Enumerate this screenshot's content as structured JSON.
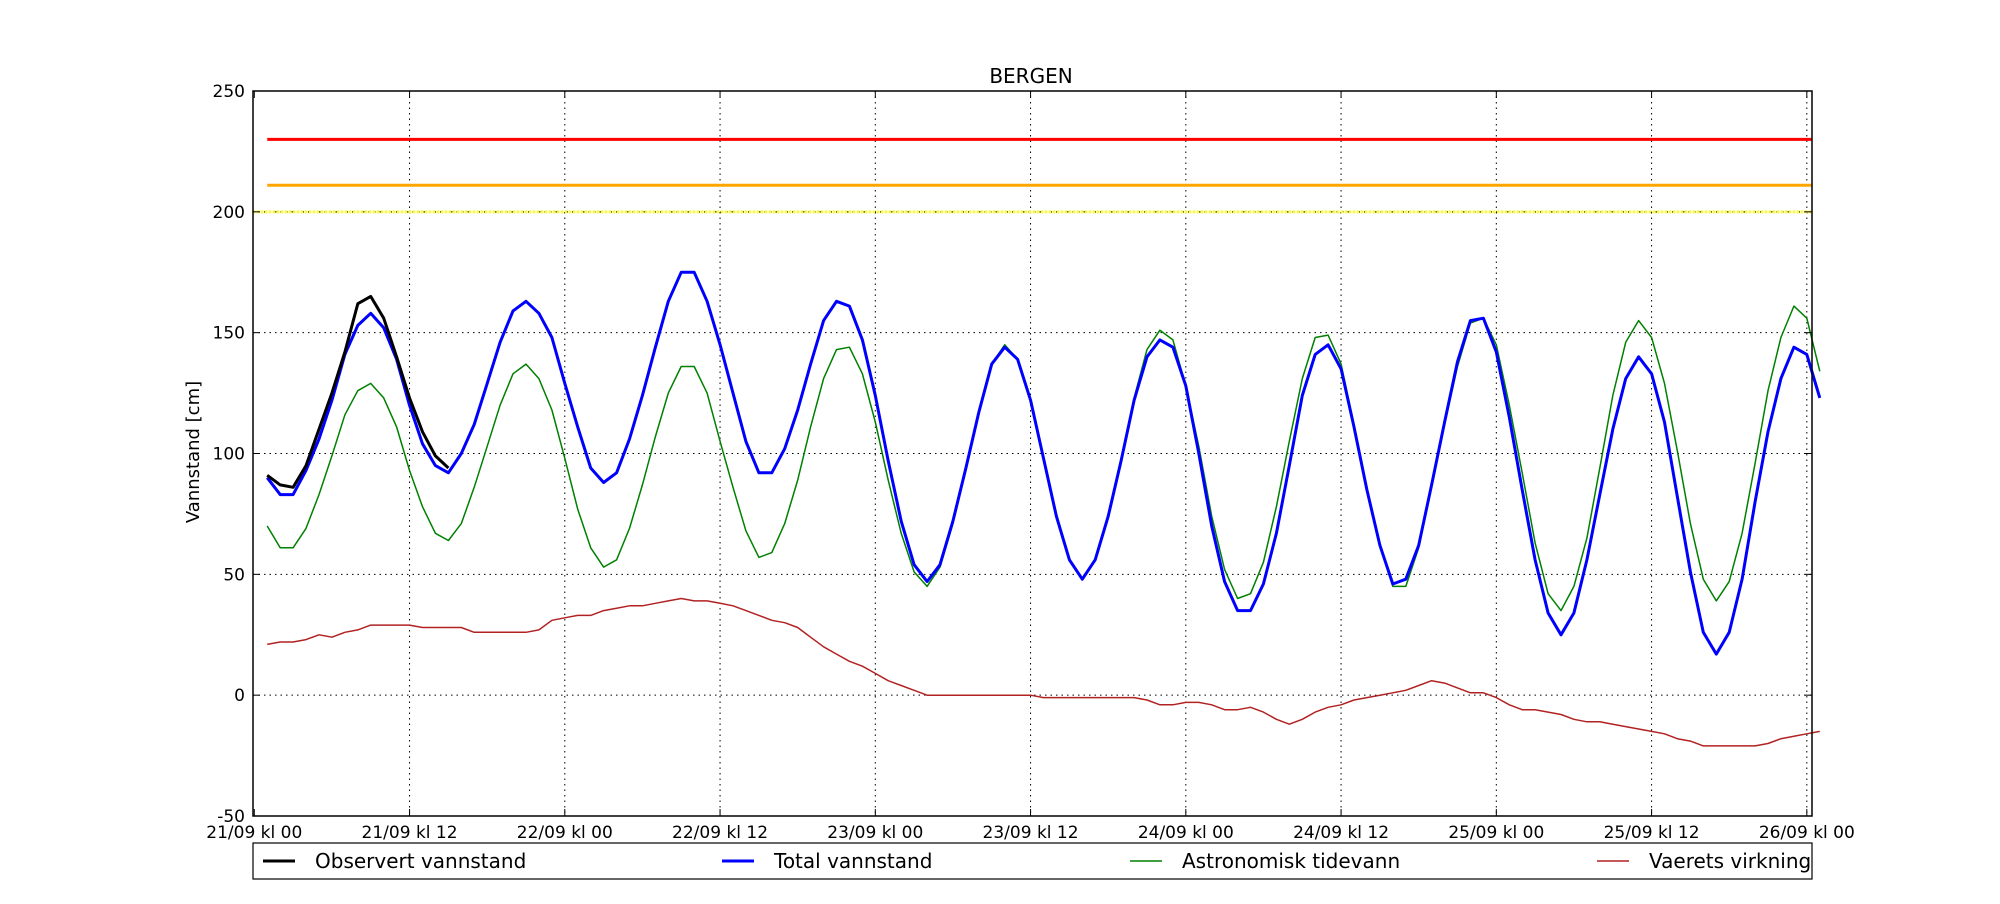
{
  "chart_data": {
    "type": "line",
    "title": "BERGEN",
    "xlabel": "",
    "ylabel": "Vannstand [cm]",
    "ylim": [
      -50,
      250
    ],
    "yticks": [
      -50,
      0,
      50,
      100,
      150,
      200,
      250
    ],
    "xlim": [
      -0.1,
      120.4
    ],
    "xticks": [
      {
        "label": "21/09 kl 00",
        "hour": 0
      },
      {
        "label": "21/09 kl 12",
        "hour": 12
      },
      {
        "label": "22/09 kl 00",
        "hour": 24
      },
      {
        "label": "22/09 kl 12",
        "hour": 36
      },
      {
        "label": "23/09 kl 00",
        "hour": 48
      },
      {
        "label": "23/09 kl 12",
        "hour": 60
      },
      {
        "label": "24/09 kl 00",
        "hour": 72
      },
      {
        "label": "24/09 kl 12",
        "hour": 84
      },
      {
        "label": "25/09 kl 00",
        "hour": 96
      },
      {
        "label": "25/09 kl 12",
        "hour": 108
      },
      {
        "label": "26/09 kl 00",
        "hour": 120
      }
    ],
    "grid": true,
    "legend_position": "bottom",
    "thresholds": [
      {
        "value": 230,
        "color": "#ff0000",
        "style": "solid"
      },
      {
        "value": 211,
        "color": "#ffa500",
        "style": "solid"
      },
      {
        "value": 200,
        "color": "#ffff00",
        "style": "dotted"
      }
    ],
    "series": [
      {
        "name": "Observert vannstand",
        "color": "#000000",
        "width": 3,
        "x": [
          1,
          2,
          3,
          4,
          5,
          6,
          7,
          8,
          9,
          10,
          11,
          12,
          13,
          14,
          15
        ],
        "y": [
          91,
          87,
          86,
          95,
          110,
          125,
          142,
          162,
          165,
          156,
          140,
          123,
          109,
          99,
          94
        ]
      },
      {
        "name": "Total vannstand",
        "color": "#0000ff",
        "width": 3,
        "x": [
          1,
          2,
          3,
          4,
          5,
          6,
          7,
          8,
          9,
          10,
          11,
          12,
          13,
          14,
          15,
          16,
          17,
          18,
          19,
          20,
          21,
          22,
          23,
          24,
          25,
          26,
          27,
          28,
          29,
          30,
          31,
          32,
          33,
          34,
          35,
          36,
          37,
          38,
          39,
          40,
          41,
          42,
          43,
          44,
          45,
          46,
          47,
          48,
          49,
          50,
          51,
          52,
          53,
          54,
          55,
          56,
          57,
          58,
          59,
          60,
          61,
          62,
          63,
          64,
          65,
          66,
          67,
          68,
          69,
          70,
          71,
          72,
          73,
          74,
          75,
          76,
          77,
          78,
          79,
          80,
          81,
          82,
          83,
          84,
          85,
          86,
          87,
          88,
          89,
          90,
          91,
          92,
          93,
          94,
          95,
          96,
          97,
          98,
          99,
          100,
          101,
          102,
          103,
          104,
          105,
          106,
          107,
          108,
          109,
          110,
          111,
          112,
          113,
          114,
          115,
          116,
          117,
          118,
          119,
          120,
          121
        ],
        "y": [
          90,
          83,
          83,
          93,
          106,
          122,
          141,
          153,
          158,
          152,
          139,
          120,
          104,
          95,
          92,
          100,
          112,
          129,
          146,
          159,
          163,
          158,
          148,
          129,
          111,
          94,
          88,
          92,
          106,
          124,
          144,
          163,
          175,
          175,
          163,
          145,
          125,
          105,
          92,
          92,
          102,
          118,
          137,
          155,
          163,
          161,
          147,
          124,
          97,
          72,
          54,
          47,
          54,
          72,
          94,
          117,
          137,
          144,
          139,
          122,
          98,
          74,
          56,
          48,
          56,
          74,
          97,
          122,
          140,
          147,
          144,
          128,
          100,
          70,
          47,
          35,
          35,
          46,
          67,
          95,
          124,
          141,
          145,
          135,
          111,
          85,
          62,
          46,
          48,
          62,
          87,
          113,
          138,
          155,
          156,
          142,
          115,
          85,
          56,
          34,
          25,
          34,
          56,
          83,
          110,
          131,
          140,
          133,
          113,
          82,
          51,
          26,
          17,
          26,
          48,
          80,
          109,
          131,
          144,
          141,
          123
        ]
      },
      {
        "name": "Astronomisk tidevann",
        "color": "#008000",
        "width": 1.5,
        "x": [
          1,
          2,
          3,
          4,
          5,
          6,
          7,
          8,
          9,
          10,
          11,
          12,
          13,
          14,
          15,
          16,
          17,
          18,
          19,
          20,
          21,
          22,
          23,
          24,
          25,
          26,
          27,
          28,
          29,
          30,
          31,
          32,
          33,
          34,
          35,
          36,
          37,
          38,
          39,
          40,
          41,
          42,
          43,
          44,
          45,
          46,
          47,
          48,
          49,
          50,
          51,
          52,
          53,
          54,
          55,
          56,
          57,
          58,
          59,
          60,
          61,
          62,
          63,
          64,
          65,
          66,
          67,
          68,
          69,
          70,
          71,
          72,
          73,
          74,
          75,
          76,
          77,
          78,
          79,
          80,
          81,
          82,
          83,
          84,
          85,
          86,
          87,
          88,
          89,
          90,
          91,
          92,
          93,
          94,
          95,
          96,
          97,
          98,
          99,
          100,
          101,
          102,
          103,
          104,
          105,
          106,
          107,
          108,
          109,
          110,
          111,
          112,
          113,
          114,
          115,
          116,
          117,
          118,
          119,
          120,
          121
        ],
        "y": [
          70,
          61,
          61,
          69,
          83,
          99,
          116,
          126,
          129,
          123,
          111,
          93,
          78,
          67,
          64,
          71,
          86,
          103,
          120,
          133,
          137,
          131,
          118,
          98,
          77,
          61,
          53,
          56,
          69,
          87,
          107,
          125,
          136,
          136,
          125,
          105,
          86,
          68,
          57,
          59,
          71,
          89,
          111,
          131,
          143,
          144,
          133,
          113,
          89,
          67,
          51,
          45,
          53,
          71,
          94,
          117,
          137,
          145,
          139,
          122,
          98,
          75,
          56,
          48,
          56,
          75,
          98,
          123,
          143,
          151,
          147,
          128,
          103,
          74,
          52,
          40,
          42,
          55,
          78,
          105,
          131,
          148,
          149,
          137,
          112,
          85,
          62,
          45,
          45,
          61,
          88,
          112,
          136,
          154,
          156,
          145,
          120,
          92,
          63,
          42,
          35,
          45,
          65,
          94,
          124,
          146,
          155,
          148,
          129,
          101,
          71,
          48,
          39,
          47,
          67,
          96,
          126,
          148,
          161,
          156,
          134
        ]
      },
      {
        "name": "Vaerets virkning",
        "color": "#b22222",
        "width": 1.5,
        "x": [
          1,
          2,
          3,
          4,
          5,
          6,
          7,
          8,
          9,
          10,
          11,
          12,
          13,
          14,
          15,
          16,
          17,
          18,
          19,
          20,
          21,
          22,
          23,
          24,
          25,
          26,
          27,
          28,
          29,
          30,
          31,
          32,
          33,
          34,
          35,
          36,
          37,
          38,
          39,
          40,
          41,
          42,
          43,
          44,
          45,
          46,
          47,
          48,
          49,
          50,
          51,
          52,
          53,
          54,
          55,
          56,
          57,
          58,
          59,
          60,
          61,
          62,
          63,
          64,
          65,
          66,
          67,
          68,
          69,
          70,
          71,
          72,
          73,
          74,
          75,
          76,
          77,
          78,
          79,
          80,
          81,
          82,
          83,
          84,
          85,
          86,
          87,
          88,
          89,
          90,
          91,
          92,
          93,
          94,
          95,
          96,
          97,
          98,
          99,
          100,
          101,
          102,
          103,
          104,
          105,
          106,
          107,
          108,
          109,
          110,
          111,
          112,
          113,
          114,
          115,
          116,
          117,
          118,
          119,
          120,
          121
        ],
        "y": [
          21,
          22,
          22,
          23,
          25,
          24,
          26,
          27,
          29,
          29,
          29,
          29,
          28,
          28,
          28,
          28,
          26,
          26,
          26,
          26,
          26,
          27,
          31,
          32,
          33,
          33,
          35,
          36,
          37,
          37,
          38,
          39,
          40,
          39,
          39,
          38,
          37,
          35,
          33,
          31,
          30,
          28,
          24,
          20,
          17,
          14,
          12,
          9,
          6,
          4,
          2,
          0,
          0,
          0,
          0,
          0,
          0,
          0,
          0,
          0,
          -1,
          -1,
          -1,
          -1,
          -1,
          -1,
          -1,
          -1,
          -2,
          -4,
          -4,
          -3,
          -3,
          -4,
          -6,
          -6,
          -5,
          -7,
          -10,
          -12,
          -10,
          -7,
          -5,
          -4,
          -2,
          -1,
          0,
          1,
          2,
          4,
          6,
          5,
          3,
          1,
          1,
          -1,
          -4,
          -6,
          -6,
          -7,
          -8,
          -10,
          -11,
          -11,
          -12,
          -13,
          -14,
          -15,
          -16,
          -18,
          -19,
          -21,
          -21,
          -21,
          -21,
          -21,
          -20,
          -18,
          -17,
          -16,
          -15
        ]
      }
    ]
  }
}
